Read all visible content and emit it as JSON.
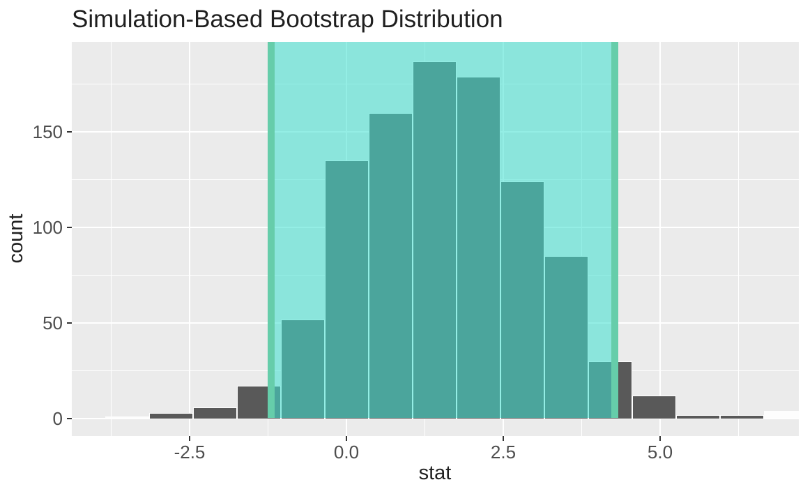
{
  "title": "Simulation-Based Bootstrap Distribution",
  "chart_data": {
    "type": "bar",
    "subtype": "histogram",
    "title": "Simulation-Based Bootstrap Distribution",
    "xlabel": "stat",
    "ylabel": "count",
    "binwidth": 0.7,
    "bins": [
      {
        "center": -3.5,
        "count": 1,
        "white": true
      },
      {
        "center": -2.8,
        "count": 3,
        "white": false
      },
      {
        "center": -2.1,
        "count": 6,
        "white": false
      },
      {
        "center": -1.4,
        "count": 17,
        "white": false
      },
      {
        "center": -0.7,
        "count": 52,
        "white": false
      },
      {
        "center": 0.0,
        "count": 135,
        "white": false
      },
      {
        "center": 0.7,
        "count": 160,
        "white": false
      },
      {
        "center": 1.4,
        "count": 187,
        "white": false
      },
      {
        "center": 2.1,
        "count": 179,
        "white": false
      },
      {
        "center": 2.8,
        "count": 124,
        "white": false
      },
      {
        "center": 3.5,
        "count": 85,
        "white": false
      },
      {
        "center": 4.2,
        "count": 30,
        "white": false
      },
      {
        "center": 4.9,
        "count": 12,
        "white": false
      },
      {
        "center": 5.6,
        "count": 2,
        "white": false
      },
      {
        "center": 6.3,
        "count": 2,
        "white": false
      },
      {
        "center": 7.0,
        "count": 4,
        "white": true
      }
    ],
    "confidence_interval": {
      "lower": -1.2,
      "upper": 4.28
    },
    "x_ticks": [
      {
        "value": -2.5,
        "label": "-2.5"
      },
      {
        "value": 0.0,
        "label": "0.0"
      },
      {
        "value": 2.5,
        "label": "2.5"
      },
      {
        "value": 5.0,
        "label": "5.0"
      }
    ],
    "y_ticks": [
      {
        "value": 0,
        "label": "0"
      },
      {
        "value": 50,
        "label": "50"
      },
      {
        "value": 100,
        "label": "100"
      },
      {
        "value": 150,
        "label": "150"
      }
    ],
    "x_minor_ticks": [
      -3.75,
      -1.25,
      1.25,
      3.75,
      6.25
    ],
    "y_minor_ticks": [
      25,
      75,
      125,
      175
    ],
    "xlim": [
      -4.37,
      7.21
    ],
    "ylim": [
      -9.3,
      197
    ],
    "grid": true,
    "legend_position": "none",
    "colors": {
      "bar_fill": "#595959",
      "bar_border": "#FFFFFF",
      "white_bar_fill": "#FDFDFD",
      "panel_background": "#EBEBEB",
      "gridline": "#FFFFFF",
      "ci_fill": "rgba(64,224,208,0.56)",
      "ci_line": "#66CDAA",
      "tick_label": "#4D4D4D",
      "axis_text": "#1F1F1F",
      "tick_mark": "#333333"
    }
  }
}
